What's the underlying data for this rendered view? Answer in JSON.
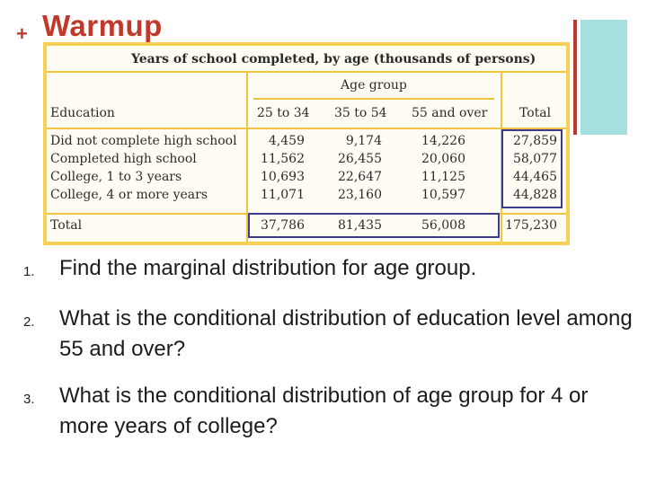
{
  "header": {
    "plus": "+",
    "title": "Warmup"
  },
  "table": {
    "title": "Years of school completed, by age (thousands of persons)",
    "age_group_label": "Age group",
    "columns": [
      "Education",
      "25 to 34",
      "35 to 54",
      "55 and over",
      "Total"
    ],
    "rows": [
      {
        "label": "Did not complete high school",
        "values": [
          "4,459",
          "9,174",
          "14,226",
          "27,859"
        ]
      },
      {
        "label": "Completed high school",
        "values": [
          "11,562",
          "26,455",
          "20,060",
          "58,077"
        ]
      },
      {
        "label": "College, 1 to 3 years",
        "values": [
          "10,693",
          "22,647",
          "11,125",
          "44,465"
        ]
      },
      {
        "label": "College, 4 or more years",
        "values": [
          "11,071",
          "23,160",
          "10,597",
          "44,828"
        ]
      }
    ],
    "total_row": {
      "label": "Total",
      "values": [
        "37,786",
        "81,435",
        "56,008",
        "175,230"
      ]
    },
    "colors": {
      "frame": "#f7d154",
      "rules": "#f2c440",
      "highlight_box": "#3b3b8f"
    }
  },
  "questions": [
    {
      "number": "1.",
      "text": "Find the marginal distribution for age group."
    },
    {
      "number": "2.",
      "text": "What is the conditional distribution of education level among 55 and over?"
    },
    {
      "number": "3.",
      "text": "What is the conditional distribution of age group for 4 or more years of college?"
    }
  ],
  "colors": {
    "title": "#c0392b",
    "accent_bar": "#a5dfe0"
  }
}
